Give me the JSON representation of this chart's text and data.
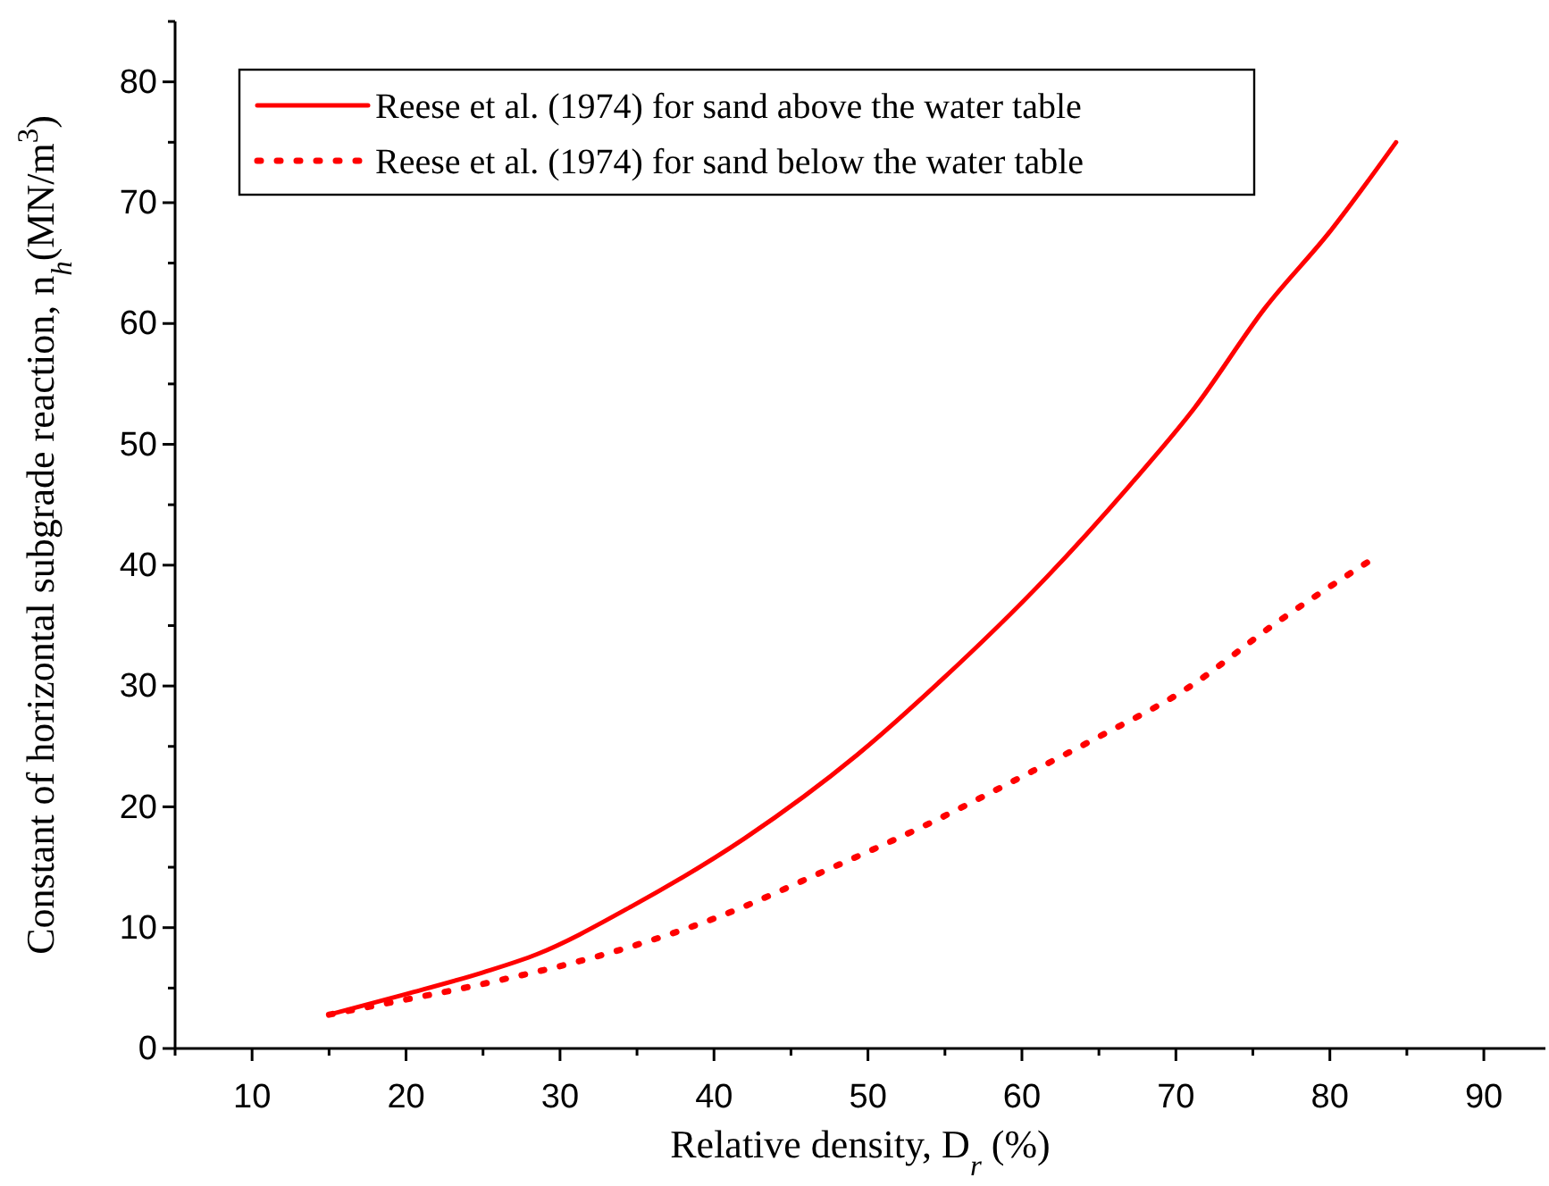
{
  "chart_data": {
    "type": "line",
    "xlabel": "Relative density, D$_{r}$ (%)",
    "ylabel": "Constant of horizontal subgrade reaction, n$_{h}$(MN/m$^{3}$)",
    "xlim": [
      5,
      94
    ],
    "xticks": [
      10,
      20,
      30,
      40,
      50,
      60,
      70,
      80,
      90
    ],
    "ylim": [
      0,
      85
    ],
    "yticks": [
      0,
      10,
      20,
      30,
      40,
      50,
      60,
      70,
      80
    ],
    "grid": false,
    "legend": "top left",
    "series": [
      {
        "name": "Reese et al. (1974) for sand above the water table",
        "color": "#ff0000",
        "line_style": "solid",
        "x": [
          15,
          20,
          25,
          28.5,
          34.7,
          42,
          49.3,
          54.7,
          61.6,
          67,
          71.2,
          75.8,
          80,
          84.3
        ],
        "values": [
          2.8,
          4.5,
          6.3,
          7.8,
          11.8,
          17.4,
          24.3,
          30.4,
          39,
          46.6,
          53,
          61.3,
          67.6,
          75
        ]
      },
      {
        "name": "Reese et al. (1974) for sand below the water table",
        "color": "#ff0000",
        "line_style": "dotted",
        "x": [
          15,
          18.6,
          25.9,
          33.2,
          40.3,
          47.2,
          54.1,
          60,
          65,
          70.6,
          76.6,
          83
        ],
        "values": [
          2.8,
          3.7,
          5.6,
          7.9,
          10.9,
          14.7,
          18.7,
          22.5,
          25.8,
          29.7,
          35.3,
          40.7
        ]
      }
    ]
  }
}
